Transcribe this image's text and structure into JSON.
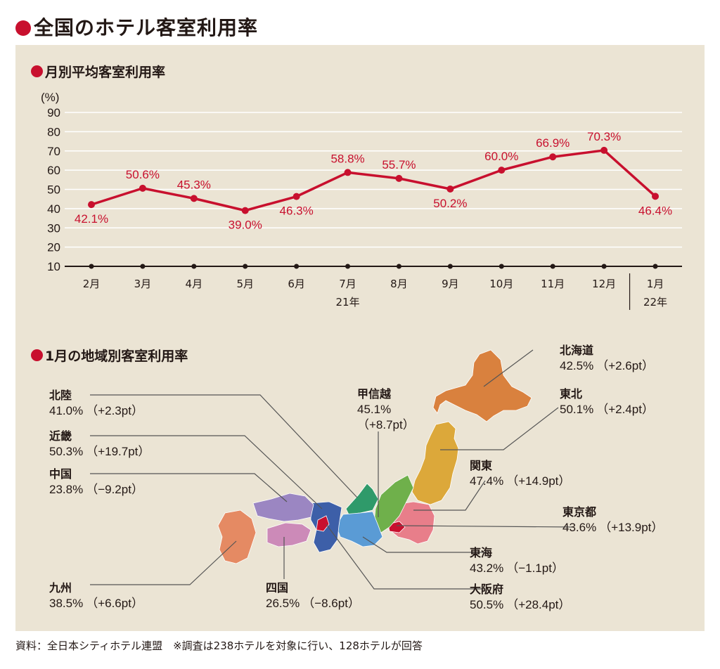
{
  "title": "全国のホテル客室利用率",
  "monthly": {
    "subtitle": "月別平均客室利用率",
    "chart_data": {
      "type": "line",
      "title": "月別平均客室利用率",
      "ylabel": "(%)",
      "ylim": [
        10,
        90
      ],
      "yticks": [
        10,
        20,
        30,
        40,
        50,
        60,
        70,
        80,
        90
      ],
      "grid": true,
      "categories": [
        "2月",
        "3月",
        "4月",
        "5月",
        "6月",
        "7月",
        "8月",
        "9月",
        "10月",
        "11月",
        "12月",
        "1月"
      ],
      "year_labels": [
        {
          "after_index": 5,
          "text": "21年"
        },
        {
          "after_index": 11,
          "text": "22年"
        }
      ],
      "values": [
        42.1,
        50.6,
        45.3,
        39.0,
        46.3,
        58.8,
        55.7,
        50.2,
        60.0,
        66.9,
        70.3,
        46.4
      ],
      "data_labels": [
        "42.1%",
        "50.6%",
        "45.3%",
        "39.0%",
        "46.3%",
        "58.8%",
        "55.7%",
        "50.2%",
        "60.0%",
        "66.9%",
        "70.3%",
        "46.4%"
      ],
      "line_color": "#c8102e"
    }
  },
  "regional": {
    "subtitle": "1月の地域別客室利用率",
    "regions": [
      {
        "name": "北海道",
        "rate": "42.5%",
        "change": "（+2.6pt）",
        "color": "#d9813e"
      },
      {
        "name": "東北",
        "rate": "50.1%",
        "change": "（+2.4pt）",
        "color": "#dca83a"
      },
      {
        "name": "甲信越",
        "rate": "45.1%",
        "change": "（+8.7pt）",
        "color": "#6fb04b"
      },
      {
        "name": "関東",
        "rate": "47.4%",
        "change": "（+14.9pt）",
        "color": "#e87e8a"
      },
      {
        "name": "東京都",
        "rate": "43.6%",
        "change": "（+13.9pt）",
        "color": "#c8102e"
      },
      {
        "name": "東海",
        "rate": "43.2%",
        "change": "（−1.1pt）",
        "color": "#5a9bd5"
      },
      {
        "name": "大阪府",
        "rate": "50.5%",
        "change": "（+28.4pt）",
        "color": "#c8102e"
      },
      {
        "name": "北陸",
        "rate": "41.0%",
        "change": "（+2.3pt）",
        "color": "#2f9a6a"
      },
      {
        "name": "近畿",
        "rate": "50.3%",
        "change": "（+19.7pt）",
        "color": "#3d5fa8"
      },
      {
        "name": "中国",
        "rate": "23.8%",
        "change": "（−9.2pt）",
        "color": "#9b86c2"
      },
      {
        "name": "四国",
        "rate": "26.5%",
        "change": "（−8.6pt）",
        "color": "#cc8ab8"
      },
      {
        "name": "九州",
        "rate": "38.5%",
        "change": "（+6.6pt）",
        "color": "#e58a63"
      }
    ]
  },
  "source": "資料：全日本シティホテル連盟　※調査は238ホテルを対象に行い、128ホテルが回答"
}
